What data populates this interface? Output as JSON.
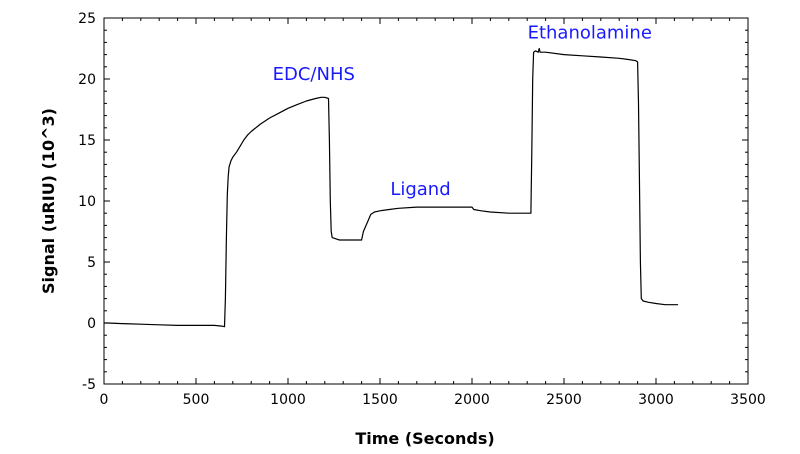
{
  "chart_data": {
    "type": "line",
    "xlabel": "Time (Seconds)",
    "ylabel": "Signal (uRIU) (10^3)",
    "xlim": [
      0,
      3500
    ],
    "ylim": [
      -5,
      25
    ],
    "x_ticks": [
      0,
      500,
      1000,
      1500,
      2000,
      2500,
      3000,
      3500
    ],
    "y_ticks": [
      -5,
      0,
      5,
      10,
      15,
      20,
      25
    ],
    "grid": false,
    "line_color": "#000000",
    "annotation_color": "#1a1aff",
    "annotations": [
      {
        "text": "EDC/NHS",
        "x": 1140,
        "y": 19.9
      },
      {
        "text": "Ligand",
        "x": 1720,
        "y": 10.5
      },
      {
        "text": "Ethanolamine",
        "x": 2640,
        "y": 23.3
      }
    ],
    "series": [
      {
        "x": [
          0,
          20,
          100,
          200,
          300,
          400,
          500,
          600,
          640,
          655,
          660,
          665,
          670,
          675,
          680,
          690,
          700,
          720,
          740,
          760,
          780,
          800,
          850,
          900,
          950,
          1000,
          1050,
          1100,
          1150,
          1180,
          1200,
          1220,
          1225,
          1230,
          1235,
          1240,
          1260,
          1280,
          1300,
          1340,
          1380,
          1400,
          1410,
          1430,
          1450,
          1470,
          1500,
          1550,
          1600,
          1700,
          1800,
          1900,
          2000,
          2010,
          2050,
          2100,
          2200,
          2300,
          2320,
          2325,
          2330,
          2335,
          2345,
          2360,
          2365,
          2370,
          2400,
          2500,
          2600,
          2700,
          2800,
          2850,
          2890,
          2900,
          2905,
          2910,
          2915,
          2920,
          2930,
          2960,
          3000,
          3050,
          3100,
          3120
        ],
        "y": [
          0.0,
          0.0,
          -0.05,
          -0.1,
          -0.15,
          -0.2,
          -0.2,
          -0.2,
          -0.25,
          -0.3,
          2.0,
          7.0,
          10.5,
          12.0,
          12.8,
          13.3,
          13.6,
          14.0,
          14.5,
          15.0,
          15.4,
          15.7,
          16.3,
          16.8,
          17.2,
          17.6,
          17.9,
          18.2,
          18.4,
          18.5,
          18.5,
          18.4,
          15.0,
          10.0,
          7.5,
          7.0,
          6.9,
          6.8,
          6.8,
          6.8,
          6.8,
          6.8,
          7.5,
          8.2,
          8.9,
          9.1,
          9.2,
          9.3,
          9.4,
          9.5,
          9.5,
          9.5,
          9.5,
          9.3,
          9.2,
          9.1,
          9.0,
          9.0,
          9.0,
          14.0,
          20.0,
          22.2,
          22.3,
          22.2,
          22.5,
          22.2,
          22.2,
          22.0,
          21.9,
          21.8,
          21.7,
          21.6,
          21.5,
          21.4,
          18.0,
          12.0,
          5.0,
          2.0,
          1.8,
          1.7,
          1.6,
          1.5,
          1.5,
          1.5
        ]
      }
    ]
  }
}
